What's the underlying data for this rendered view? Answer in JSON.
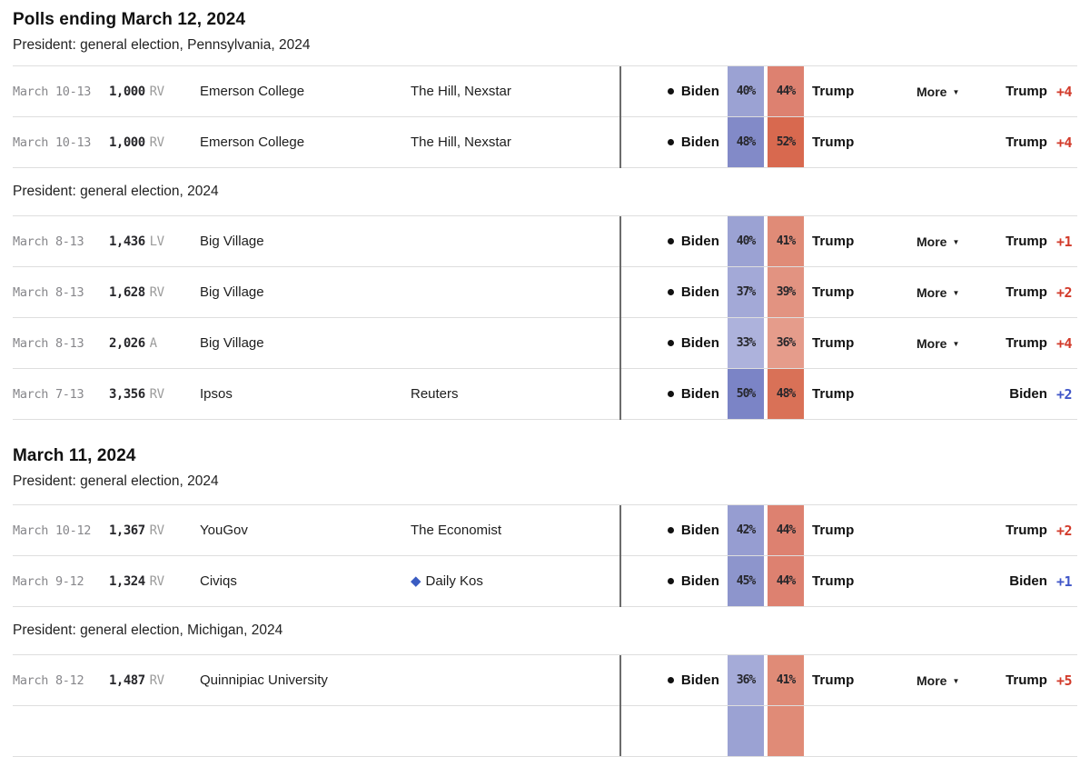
{
  "colors": {
    "red_margin": "#d23a2a",
    "blue_margin": "#4056c8",
    "divider": "#6b6b6b",
    "row_line": "#dedede",
    "sponsor_diamond_blue": "#3a5cc2"
  },
  "sections": [
    {
      "heading": "Polls ending March 12, 2024",
      "subheading": "President: general election, Pennsylvania, 2024",
      "groups": [
        {
          "label": "",
          "rows": [
            {
              "dates": "March 10-13",
              "sample_n": "1,000",
              "sample_type": "RV",
              "pollster": "Emerson College",
              "sponsor": "The Hill, Nexstar",
              "sponsor_icon": "",
              "dem_label": "Biden",
              "dem_pct": "40%",
              "dem_color": "#9ba2d3",
              "rep_pct": "44%",
              "rep_color": "#dd8170",
              "rep_label": "Trump",
              "more_label": "More",
              "more_icon": "▼",
              "has_more": true,
              "leader": "Trump",
              "margin": "+4",
              "margin_color": "#d23a2a",
              "partial": false
            },
            {
              "dates": "March 10-13",
              "sample_n": "1,000",
              "sample_type": "RV",
              "pollster": "Emerson College",
              "sponsor": "The Hill, Nexstar",
              "sponsor_icon": "",
              "dem_label": "Biden",
              "dem_pct": "48%",
              "dem_color": "#828ac8",
              "rep_pct": "52%",
              "rep_color": "#d8694f",
              "rep_label": "Trump",
              "more_label": "More",
              "more_icon": "▼",
              "has_more": false,
              "leader": "Trump",
              "margin": "+4",
              "margin_color": "#d23a2a",
              "partial": false
            }
          ]
        },
        {
          "label": "President: general election, 2024",
          "rows": [
            {
              "dates": "March 8-13",
              "sample_n": "1,436",
              "sample_type": "LV",
              "pollster": "Big Village",
              "sponsor": "",
              "sponsor_icon": "",
              "dem_label": "Biden",
              "dem_pct": "40%",
              "dem_color": "#9ba2d3",
              "rep_pct": "41%",
              "rep_color": "#e08b77",
              "rep_label": "Trump",
              "more_label": "More",
              "more_icon": "▼",
              "has_more": true,
              "leader": "Trump",
              "margin": "+1",
              "margin_color": "#d23a2a",
              "partial": false
            },
            {
              "dates": "March 8-13",
              "sample_n": "1,628",
              "sample_type": "RV",
              "pollster": "Big Village",
              "sponsor": "",
              "sponsor_icon": "",
              "dem_label": "Biden",
              "dem_pct": "37%",
              "dem_color": "#a3a9d7",
              "rep_pct": "39%",
              "rep_color": "#e29381",
              "rep_label": "Trump",
              "more_label": "More",
              "more_icon": "▼",
              "has_more": true,
              "leader": "Trump",
              "margin": "+2",
              "margin_color": "#d23a2a",
              "partial": false
            },
            {
              "dates": "March 8-13",
              "sample_n": "2,026",
              "sample_type": "A",
              "pollster": "Big Village",
              "sponsor": "",
              "sponsor_icon": "",
              "dem_label": "Biden",
              "dem_pct": "33%",
              "dem_color": "#adb2dc",
              "rep_pct": "36%",
              "rep_color": "#e59c8b",
              "rep_label": "Trump",
              "more_label": "More",
              "more_icon": "▼",
              "has_more": true,
              "leader": "Trump",
              "margin": "+4",
              "margin_color": "#d23a2a",
              "partial": false
            },
            {
              "dates": "March 7-13",
              "sample_n": "3,356",
              "sample_type": "RV",
              "pollster": "Ipsos",
              "sponsor": "Reuters",
              "sponsor_icon": "",
              "dem_label": "Biden",
              "dem_pct": "50%",
              "dem_color": "#7b84c6",
              "rep_pct": "48%",
              "rep_color": "#d97157",
              "rep_label": "Trump",
              "more_label": "More",
              "more_icon": "▼",
              "has_more": false,
              "leader": "Biden",
              "margin": "+2",
              "margin_color": "#4056c8",
              "partial": false
            }
          ]
        }
      ]
    },
    {
      "heading": "March 11, 2024",
      "subheading": "President: general election, 2024",
      "groups": [
        {
          "label": "",
          "rows": [
            {
              "dates": "March 10-12",
              "sample_n": "1,367",
              "sample_type": "RV",
              "pollster": "YouGov",
              "sponsor": "The Economist",
              "sponsor_icon": "",
              "dem_label": "Biden",
              "dem_pct": "42%",
              "dem_color": "#969dd1",
              "rep_pct": "44%",
              "rep_color": "#dd8170",
              "rep_label": "Trump",
              "more_label": "More",
              "more_icon": "▼",
              "has_more": false,
              "leader": "Trump",
              "margin": "+2",
              "margin_color": "#d23a2a",
              "partial": false
            },
            {
              "dates": "March 9-12",
              "sample_n": "1,324",
              "sample_type": "RV",
              "pollster": "Civiqs",
              "sponsor": "Daily Kos",
              "sponsor_icon": "◆",
              "dem_label": "Biden",
              "dem_pct": "45%",
              "dem_color": "#8d95cc",
              "rep_pct": "44%",
              "rep_color": "#dd8170",
              "rep_label": "Trump",
              "more_label": "More",
              "more_icon": "▼",
              "has_more": false,
              "leader": "Biden",
              "margin": "+1",
              "margin_color": "#4056c8",
              "partial": false
            }
          ]
        },
        {
          "label": "President: general election, Michigan, 2024",
          "rows": [
            {
              "dates": "March 8-12",
              "sample_n": "1,487",
              "sample_type": "RV",
              "pollster": "Quinnipiac University",
              "sponsor": "",
              "sponsor_icon": "",
              "dem_label": "Biden",
              "dem_pct": "36%",
              "dem_color": "#a5abd8",
              "rep_pct": "41%",
              "rep_color": "#e08b77",
              "rep_label": "Trump",
              "more_label": "More",
              "more_icon": "▼",
              "has_more": true,
              "leader": "Trump",
              "margin": "+5",
              "margin_color": "#d23a2a",
              "partial": false
            },
            {
              "dates": "",
              "sample_n": "",
              "sample_type": "",
              "pollster": "",
              "sponsor": "",
              "sponsor_icon": "",
              "dem_label": "",
              "dem_pct": "",
              "dem_color": "#9ba2d3",
              "rep_pct": "",
              "rep_color": "#e08b77",
              "rep_label": "",
              "more_label": "",
              "more_icon": "",
              "has_more": false,
              "leader": "",
              "margin": "",
              "margin_color": "#d23a2a",
              "partial": true
            }
          ]
        }
      ]
    }
  ]
}
